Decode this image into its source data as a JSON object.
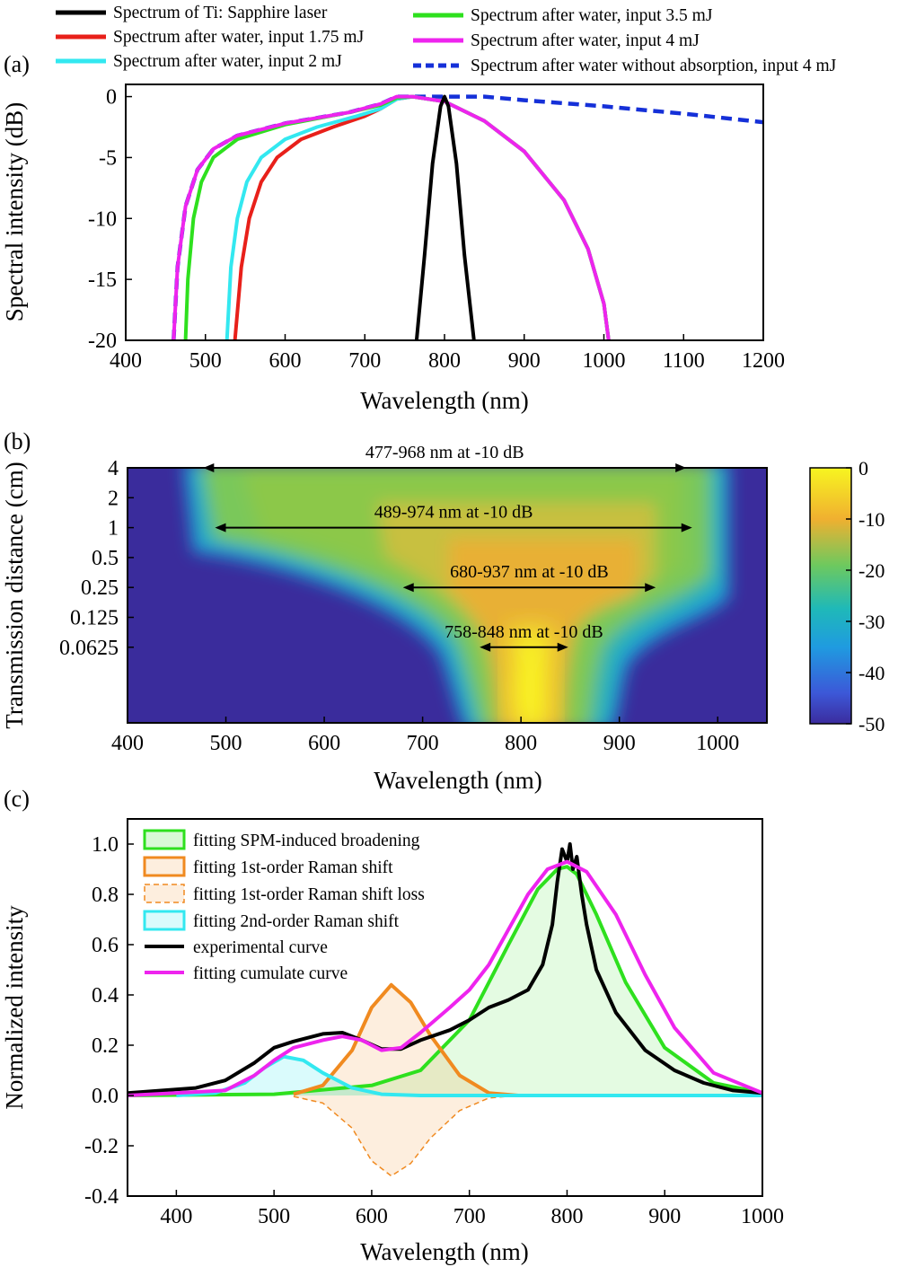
{
  "colors": {
    "ti": "#000000",
    "w175": "#e8201a",
    "w2": "#33e8f0",
    "w35": "#2ee01e",
    "w4": "#ee24ee",
    "noabs": "#1530d8",
    "spm": "#2ee01e",
    "raman1": "#f08a20",
    "raman2": "#33e8f0",
    "exp": "#000000",
    "cum": "#ee24ee"
  },
  "chart_data": [
    {
      "panel_label": "(a)",
      "type": "line",
      "xlabel": "Wavelength (nm)",
      "ylabel": "Spectral intensity (dB)",
      "xlim": [
        400,
        1200
      ],
      "ylim": [
        -20,
        1
      ],
      "xticks": [
        "400",
        "500",
        "600",
        "700",
        "800",
        "900",
        "1000",
        "1100",
        "1200"
      ],
      "yticks": [
        "0",
        "-5",
        "-10",
        "-15",
        "-20"
      ],
      "legend_position": "above-plot",
      "series": [
        {
          "key": "ti",
          "name": "Spectrum of Ti: Sapphire laser",
          "style": "solid",
          "x": [
            765,
            775,
            785,
            795,
            800,
            805,
            815,
            825,
            837
          ],
          "y": [
            -20,
            -13,
            -5.5,
            -0.8,
            0,
            -0.8,
            -5.5,
            -13,
            -20
          ]
        },
        {
          "key": "w175",
          "name": "Spectrum after water, input 1.75 mJ",
          "style": "solid",
          "x": [
            537,
            545,
            555,
            570,
            590,
            620,
            660,
            700,
            720,
            740,
            760,
            800,
            850,
            900,
            950,
            980,
            1000,
            1006
          ],
          "y": [
            -20,
            -14,
            -10,
            -7,
            -5,
            -3.5,
            -2.5,
            -1.6,
            -1,
            -0.2,
            0,
            -0.4,
            -2,
            -4.5,
            -8.5,
            -12.5,
            -17,
            -20
          ]
        },
        {
          "key": "w2",
          "name": "Spectrum after water, input 2 mJ",
          "style": "solid",
          "x": [
            527,
            532,
            540,
            552,
            570,
            600,
            640,
            690,
            720,
            740,
            760,
            800,
            850,
            900,
            950,
            980,
            1000,
            1006
          ],
          "y": [
            -20,
            -14,
            -10,
            -7,
            -5,
            -3.5,
            -2.5,
            -1.6,
            -1,
            -0.2,
            0,
            -0.4,
            -2,
            -4.5,
            -8.5,
            -12.5,
            -17,
            -20
          ]
        },
        {
          "key": "w35",
          "name": "Spectrum after water, input 3.5 mJ",
          "style": "solid",
          "x": [
            475,
            478,
            485,
            495,
            510,
            540,
            600,
            680,
            720,
            740,
            760,
            800,
            850,
            900,
            950,
            980,
            1000,
            1006
          ],
          "y": [
            -20,
            -15,
            -10,
            -7,
            -5,
            -3.5,
            -2.3,
            -1.3,
            -0.7,
            -0.1,
            0,
            -0.4,
            -2,
            -4.5,
            -8.5,
            -12.5,
            -17,
            -20
          ]
        },
        {
          "key": "w4",
          "name": "Spectrum after water, input 4 mJ",
          "style": "solid",
          "x": [
            460,
            465,
            475,
            490,
            510,
            540,
            600,
            680,
            720,
            740,
            760,
            800,
            850,
            900,
            950,
            980,
            1000,
            1006
          ],
          "y": [
            -20,
            -14,
            -9,
            -6,
            -4.3,
            -3.2,
            -2.2,
            -1.3,
            -0.6,
            0,
            0,
            -0.4,
            -2,
            -4.5,
            -8.5,
            -12.5,
            -17,
            -20
          ]
        },
        {
          "key": "noabs",
          "name": "Spectrum after water without absorption, input 4 mJ",
          "style": "dashed",
          "x": [
            460,
            465,
            475,
            490,
            510,
            540,
            600,
            680,
            720,
            740,
            800,
            850,
            900,
            1000,
            1100,
            1200
          ],
          "y": [
            -20,
            -14,
            -9,
            -6,
            -4.3,
            -3.2,
            -2.2,
            -1.3,
            -0.6,
            0,
            0,
            0,
            -0.3,
            -0.8,
            -1.4,
            -2.1
          ]
        }
      ]
    },
    {
      "panel_label": "(b)",
      "type": "heatmap",
      "xlabel": "Wavelength (nm)",
      "ylabel": "Transmission distance (cm)",
      "xlim": [
        400,
        1050
      ],
      "xticks": [
        "400",
        "500",
        "600",
        "700",
        "800",
        "900",
        "1000"
      ],
      "yticks": [
        "4",
        "2",
        "1",
        "0.5",
        "0.25",
        "0.125",
        "0.0625"
      ],
      "colorbar": {
        "range": [
          -50,
          0
        ],
        "ticks": [
          "0",
          "-10",
          "-20",
          "-30",
          "-40",
          "-50"
        ]
      },
      "annotations": [
        {
          "text": "477-968 nm at -10 dB",
          "from": 477,
          "to": 968,
          "at": "4"
        },
        {
          "text": "489-974 nm at -10 dB",
          "from": 489,
          "to": 974,
          "at": "1"
        },
        {
          "text": "680-937 nm at -10 dB",
          "from": 680,
          "to": 937,
          "at": "0.25"
        },
        {
          "text": "758-848 nm at -10 dB",
          "from": 758,
          "to": 848,
          "at": "0.0625"
        }
      ]
    },
    {
      "panel_label": "(c)",
      "type": "area",
      "xlabel": "Wavelength (nm)",
      "ylabel": "Normalized intensity",
      "xlim": [
        350,
        1000
      ],
      "ylim": [
        -0.4,
        1.1
      ],
      "xticks": [
        "400",
        "500",
        "600",
        "700",
        "800",
        "900",
        "1000"
      ],
      "yticks": [
        "1.0",
        "0.8",
        "0.6",
        "0.4",
        "0.2",
        "0.0",
        "-0.2",
        "-0.4"
      ],
      "legend_position": "top-left",
      "legend": [
        {
          "key": "spm",
          "name": "fitting SPM-induced broadening",
          "kind": "box"
        },
        {
          "key": "raman1",
          "name": "fitting 1st-order Raman shift",
          "kind": "box"
        },
        {
          "key": "raman1loss",
          "name": "fitting 1st-order Raman shift loss",
          "kind": "dashbox"
        },
        {
          "key": "raman2",
          "name": "fitting 2nd-order Raman shift",
          "kind": "box"
        },
        {
          "key": "exp",
          "name": "experimental curve",
          "kind": "line"
        },
        {
          "key": "cum",
          "name": "fitting cumulate curve",
          "kind": "line"
        }
      ],
      "series": [
        {
          "key": "spm",
          "name": "fitting SPM-induced broadening",
          "x": [
            350,
            500,
            600,
            650,
            700,
            740,
            770,
            790,
            800,
            810,
            830,
            860,
            900,
            950,
            1000
          ],
          "y": [
            0,
            0.005,
            0.04,
            0.1,
            0.3,
            0.6,
            0.82,
            0.9,
            0.91,
            0.88,
            0.72,
            0.45,
            0.19,
            0.05,
            0.01
          ]
        },
        {
          "key": "raman1",
          "name": "fitting 1st-order Raman shift",
          "x": [
            520,
            550,
            580,
            600,
            620,
            640,
            660,
            690,
            720,
            750
          ],
          "y": [
            0.005,
            0.04,
            0.18,
            0.35,
            0.44,
            0.37,
            0.24,
            0.08,
            0.01,
            0
          ]
        },
        {
          "key": "raman1loss",
          "name": "fitting 1st-order Raman shift loss",
          "x": [
            520,
            550,
            580,
            600,
            620,
            640,
            660,
            690,
            720,
            750
          ],
          "y": [
            -0.004,
            -0.03,
            -0.13,
            -0.26,
            -0.32,
            -0.27,
            -0.17,
            -0.06,
            -0.01,
            0
          ]
        },
        {
          "key": "raman2",
          "name": "fitting 2nd-order Raman shift",
          "x": [
            400,
            440,
            470,
            490,
            510,
            530,
            550,
            580,
            610,
            650,
            1000
          ],
          "y": [
            0,
            0.01,
            0.05,
            0.11,
            0.155,
            0.14,
            0.09,
            0.03,
            0.005,
            0,
            0
          ]
        },
        {
          "key": "exp",
          "name": "experimental curve",
          "x": [
            350,
            420,
            450,
            480,
            500,
            520,
            550,
            570,
            590,
            610,
            630,
            650,
            680,
            700,
            720,
            740,
            760,
            775,
            785,
            790,
            795,
            800,
            803,
            806,
            810,
            815,
            820,
            830,
            850,
            880,
            910,
            940,
            970,
            1000
          ],
          "y": [
            0.01,
            0.03,
            0.06,
            0.13,
            0.19,
            0.215,
            0.245,
            0.25,
            0.22,
            0.185,
            0.185,
            0.22,
            0.26,
            0.3,
            0.35,
            0.38,
            0.42,
            0.52,
            0.68,
            0.85,
            0.98,
            0.93,
            1.0,
            0.9,
            0.95,
            0.8,
            0.68,
            0.5,
            0.33,
            0.18,
            0.1,
            0.05,
            0.02,
            0.01
          ]
        },
        {
          "key": "cum",
          "name": "fitting cumulate curve",
          "x": [
            350,
            450,
            480,
            500,
            520,
            550,
            570,
            590,
            610,
            630,
            650,
            680,
            700,
            720,
            740,
            760,
            780,
            800,
            820,
            850,
            880,
            910,
            950,
            1000
          ],
          "y": [
            0,
            0.02,
            0.08,
            0.14,
            0.19,
            0.22,
            0.235,
            0.22,
            0.18,
            0.19,
            0.25,
            0.35,
            0.42,
            0.52,
            0.66,
            0.8,
            0.9,
            0.93,
            0.89,
            0.72,
            0.48,
            0.27,
            0.09,
            0.01
          ]
        }
      ]
    }
  ]
}
